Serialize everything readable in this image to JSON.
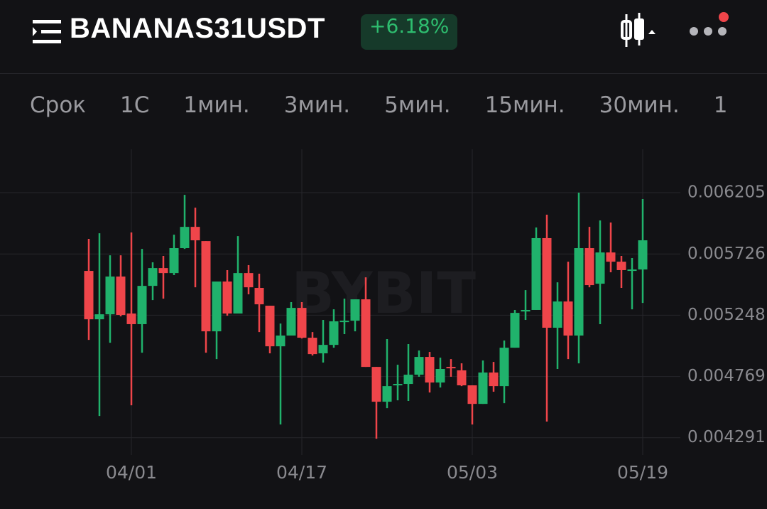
{
  "header": {
    "title": "BANANAS31USDT",
    "change": "+6.18%"
  },
  "tabs": [
    "Срок",
    "1С",
    "1мин.",
    "3мин.",
    "5мин.",
    "15мин.",
    "30мин.",
    "1"
  ],
  "chart_data": {
    "type": "candlestick",
    "watermark": "BYBIT",
    "up_color": "#20b26c",
    "down_color": "#ef454a",
    "grid": true,
    "categories": [
      null,
      null,
      null,
      null,
      "04/01",
      null,
      null,
      null,
      null,
      null,
      null,
      null,
      null,
      null,
      null,
      null,
      null,
      null,
      null,
      null,
      "04/17",
      null,
      null,
      null,
      null,
      null,
      null,
      null,
      null,
      null,
      null,
      null,
      null,
      null,
      null,
      null,
      "05/03",
      null,
      null,
      null,
      null,
      null,
      null,
      null,
      null,
      null,
      null,
      null,
      null,
      null,
      null,
      null,
      "05/19"
    ],
    "open": [
      0.005594,
      0.005216,
      0.005255,
      0.00555,
      0.005261,
      0.005178,
      0.005477,
      0.005616,
      0.005577,
      0.005772,
      0.005938,
      0.005827,
      0.005122,
      0.005511,
      0.005261,
      0.005577,
      0.005461,
      0.005322,
      0.005005,
      0.005089,
      0.005305,
      0.005072,
      0.00495,
      0.005016,
      0.005194,
      0.005205,
      0.005372,
      0.004844,
      0.004572,
      0.0047,
      0.004711,
      0.004783,
      0.004922,
      0.004722,
      0.004844,
      0.004817,
      0.0047,
      0.004555,
      0.0048,
      0.004694,
      0.004994,
      0.005277,
      0.005289,
      0.00585,
      0.00515,
      0.005355,
      0.005089,
      0.005772,
      0.005494,
      0.005738,
      0.005666,
      0.005594,
      0.005605
    ],
    "high": [
      0.005844,
      0.005888,
      0.005716,
      0.005716,
      0.005894,
      0.005766,
      0.005661,
      0.005711,
      0.005877,
      0.006188,
      0.006088,
      0.005827,
      0.005511,
      0.0056,
      0.005866,
      0.005639,
      0.005572,
      0.005322,
      0.005183,
      0.00535,
      0.00535,
      0.005116,
      0.005211,
      0.005294,
      0.005377,
      0.005372,
      0.005544,
      0.004844,
      0.005061,
      0.004861,
      0.005022,
      0.004972,
      0.004961,
      0.004916,
      0.004905,
      0.004872,
      0.0047,
      0.004894,
      0.004883,
      0.00505,
      0.005289,
      0.005444,
      0.005933,
      0.006033,
      0.005505,
      0.005666,
      0.006205,
      0.005938,
      0.005988,
      0.005972,
      0.005711,
      0.005694,
      0.006155
    ],
    "low": [
      0.005055,
      0.004461,
      0.005033,
      0.005239,
      0.004544,
      0.004955,
      0.005366,
      0.005377,
      0.005561,
      0.005766,
      0.005466,
      0.004955,
      0.004905,
      0.005244,
      0.005261,
      0.005411,
      0.005116,
      0.00495,
      0.004394,
      0.005089,
      0.005066,
      0.004933,
      0.004878,
      0.004994,
      0.0051,
      0.005122,
      0.004844,
      0.004283,
      0.004522,
      0.004583,
      0.004578,
      0.004767,
      0.004644,
      0.004683,
      0.004767,
      0.004694,
      0.004394,
      0.004555,
      0.00465,
      0.004561,
      0.004994,
      0.005211,
      0.005289,
      0.004417,
      0.004828,
      0.004905,
      0.004872,
      0.005466,
      0.005178,
      0.005583,
      0.005461,
      0.005294,
      0.005344
    ],
    "close": [
      0.005216,
      0.005255,
      0.00555,
      0.00525,
      0.005178,
      0.005477,
      0.005616,
      0.005577,
      0.005772,
      0.005938,
      0.005833,
      0.005122,
      0.005511,
      0.005261,
      0.005577,
      0.005466,
      0.005333,
      0.005005,
      0.005089,
      0.005305,
      0.005072,
      0.004944,
      0.005016,
      0.0052,
      0.005205,
      0.005372,
      0.004844,
      0.004572,
      0.004694,
      0.004711,
      0.004783,
      0.004922,
      0.004722,
      0.004828,
      0.004833,
      0.0047,
      0.004555,
      0.0048,
      0.004694,
      0.004994,
      0.005266,
      0.005289,
      0.00585,
      0.00515,
      0.005355,
      0.005089,
      0.005772,
      0.005483,
      0.005738,
      0.005666,
      0.0056,
      0.005605,
      0.005833
    ],
    "ylim": [
      0.004156,
      0.006544
    ],
    "yticks": [
      0.006205,
      0.005726,
      0.005248,
      0.004769,
      0.004291
    ]
  }
}
